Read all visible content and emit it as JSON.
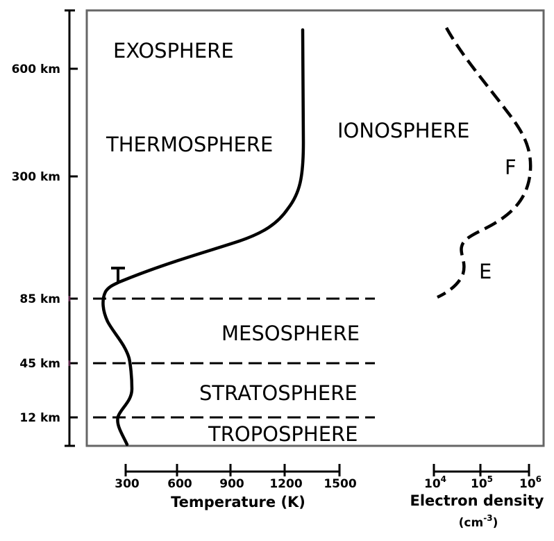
{
  "altitude_axis": {
    "ticks": [
      "600 km",
      "300 km",
      "85 km",
      "45 km",
      "12 km"
    ]
  },
  "layers": {
    "exosphere": "EXOSPHERE",
    "thermosphere": "THERMOSPHERE",
    "ionosphere": "IONOSPHERE",
    "mesosphere": "MESOSPHERE",
    "stratosphere": "STRATOSPHERE",
    "troposphere": "TROPOSPHERE",
    "f_region": "F",
    "e_region": "E"
  },
  "temperature_axis": {
    "title": "Temperature (K)",
    "ticks": [
      "300",
      "600",
      "900",
      "1200",
      "1500"
    ]
  },
  "density_axis": {
    "title": "Electron density",
    "unit_base": "(cm",
    "unit_exp": "-3",
    "unit_close": ")",
    "ticks": [
      {
        "base": "10",
        "exp": "4"
      },
      {
        "base": "10",
        "exp": "5"
      },
      {
        "base": "10",
        "exp": "6"
      }
    ]
  },
  "colors": {
    "line": "#000000",
    "frame": "#666666",
    "marker": "#552244"
  }
}
